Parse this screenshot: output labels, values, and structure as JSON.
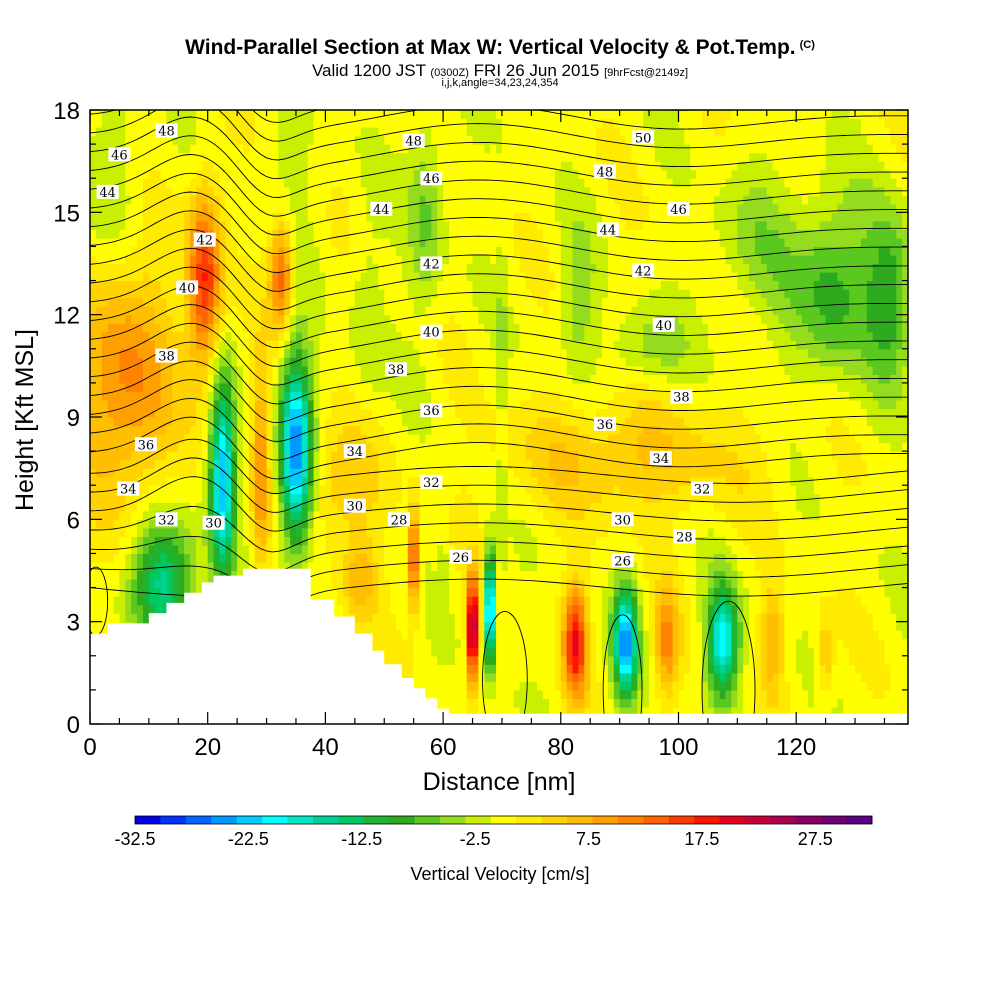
{
  "title": {
    "main": "Wind-Parallel Section at Max W: Vertical Velocity & Pot.Temp.",
    "mark": "(C)",
    "valid_a": "Valid 1200 JST",
    "valid_b": "(0300Z)",
    "valid_c": "FRI 26 Jun 2015",
    "valid_d": "[9hrFcst@2149z]",
    "params": "i,j,k,angle=34,23,24,354"
  },
  "chart_data": {
    "type": "heatmap",
    "xlabel": "Distance [nm]",
    "ylabel": "Height [Kft MSL]",
    "xlim": [
      0,
      139
    ],
    "ylim": [
      0,
      18
    ],
    "xticks": [
      "0",
      "20",
      "40",
      "60",
      "80",
      "100",
      "120"
    ],
    "yticks": [
      "0",
      "3",
      "6",
      "9",
      "12",
      "15",
      "18"
    ],
    "colorbar": {
      "label": "Vertical Velocity [cm/s]",
      "range": [
        -32.5,
        32.5
      ],
      "tick_labels": [
        "-32.5",
        "-22.5",
        "-12.5",
        "-2.5",
        "7.5",
        "17.5",
        "27.5"
      ],
      "colors": [
        "#0000e6",
        "#0033ff",
        "#0066ff",
        "#0099ff",
        "#00ccff",
        "#00ffff",
        "#00e6c8",
        "#00d296",
        "#00c864",
        "#1eb432",
        "#2daa1e",
        "#5ac81e",
        "#96dc1e",
        "#c8f000",
        "#ffff00",
        "#ffeb00",
        "#ffd200",
        "#ffbe00",
        "#ffa000",
        "#ff8200",
        "#ff6400",
        "#ff3c00",
        "#ff1400",
        "#e6001e",
        "#c8003c",
        "#aa0050",
        "#8c0064",
        "#6e0078",
        "#5a0082"
      ]
    },
    "contour_labels": [
      {
        "text": "48",
        "x": 13,
        "y": 17.4
      },
      {
        "text": "46",
        "x": 5,
        "y": 16.7
      },
      {
        "text": "44",
        "x": 3,
        "y": 15.6
      },
      {
        "text": "42",
        "x": 19.5,
        "y": 14.2
      },
      {
        "text": "40",
        "x": 16.5,
        "y": 12.8
      },
      {
        "text": "38",
        "x": 13,
        "y": 10.8
      },
      {
        "text": "36",
        "x": 9.5,
        "y": 8.2
      },
      {
        "text": "34",
        "x": 6.5,
        "y": 6.9
      },
      {
        "text": "32",
        "x": 13,
        "y": 6.0
      },
      {
        "text": "30",
        "x": 21,
        "y": 5.9
      },
      {
        "text": "48",
        "x": 55,
        "y": 17.1
      },
      {
        "text": "46",
        "x": 58,
        "y": 16.0
      },
      {
        "text": "44",
        "x": 49.5,
        "y": 15.1
      },
      {
        "text": "42",
        "x": 58,
        "y": 13.5
      },
      {
        "text": "40",
        "x": 58,
        "y": 11.5
      },
      {
        "text": "38",
        "x": 52,
        "y": 10.4
      },
      {
        "text": "36",
        "x": 58,
        "y": 9.2
      },
      {
        "text": "34",
        "x": 45,
        "y": 8.0
      },
      {
        "text": "32",
        "x": 58,
        "y": 7.1
      },
      {
        "text": "30",
        "x": 45,
        "y": 6.4
      },
      {
        "text": "28",
        "x": 52.5,
        "y": 6.0
      },
      {
        "text": "26",
        "x": 63,
        "y": 4.9
      },
      {
        "text": "50",
        "x": 94,
        "y": 17.2
      },
      {
        "text": "48",
        "x": 87.5,
        "y": 16.2
      },
      {
        "text": "46",
        "x": 100,
        "y": 15.1
      },
      {
        "text": "44",
        "x": 88,
        "y": 14.5
      },
      {
        "text": "42",
        "x": 94,
        "y": 13.3
      },
      {
        "text": "40",
        "x": 97.5,
        "y": 11.7
      },
      {
        "text": "38",
        "x": 100.5,
        "y": 9.6
      },
      {
        "text": "36",
        "x": 87.5,
        "y": 8.8
      },
      {
        "text": "34",
        "x": 97,
        "y": 7.8
      },
      {
        "text": "32",
        "x": 104,
        "y": 6.9
      },
      {
        "text": "30",
        "x": 90.5,
        "y": 6.0
      },
      {
        "text": "28",
        "x": 101,
        "y": 5.5
      },
      {
        "text": "26",
        "x": 90.5,
        "y": 4.8
      }
    ]
  }
}
